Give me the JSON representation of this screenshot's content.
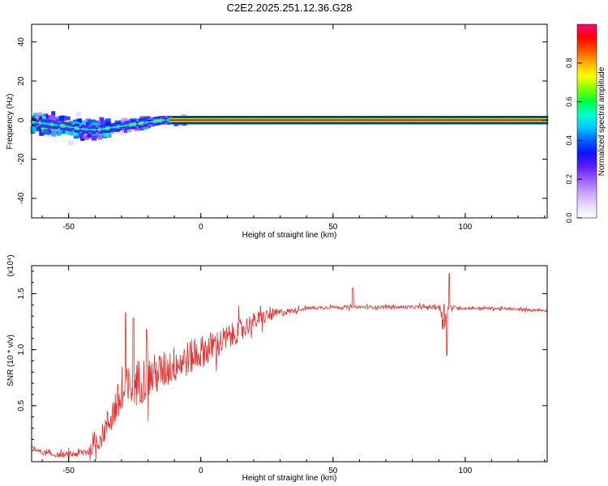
{
  "title": "C2E2.2025.251.12.36.G28",
  "chart_data": [
    {
      "type": "heatmap",
      "name": "spectrogram",
      "xlabel": "Height of straight line (km)",
      "ylabel": "Frequency (Hz)",
      "xlim": [
        -64,
        131
      ],
      "ylim": [
        -50,
        49
      ],
      "xticks": [
        -50,
        0,
        50,
        100
      ],
      "yticks": [
        -40,
        -20,
        0,
        20,
        40
      ],
      "reference_lines_hz": [
        1.5,
        -1.5
      ],
      "colorbar": {
        "label": "Normalized spectral amplitude",
        "range": [
          0,
          1
        ],
        "ticks": [
          0.0,
          0.2,
          0.4,
          0.6,
          0.8
        ],
        "tick_labels": [
          "0.0",
          "0.2",
          "0.4",
          "0.6",
          "0.8"
        ],
        "colors": [
          "#ffffff",
          "#e8d8ff",
          "#c8a0ff",
          "#9a5cff",
          "#5a1cff",
          "#1010ff",
          "#0060ff",
          "#00c8ff",
          "#00ffd0",
          "#00ff40",
          "#80ff00",
          "#ffff00",
          "#ffb000",
          "#ff5000",
          "#ff0000",
          "#ff0080"
        ]
      },
      "frequency_trace": {
        "x": [
          -64,
          -58,
          -52,
          -46,
          -40,
          -35,
          -30,
          -25,
          -20,
          -15,
          -10,
          -5,
          0,
          131
        ],
        "y": [
          -1,
          -2,
          -3,
          -4.5,
          -5,
          -4,
          -3,
          -2,
          -1,
          0,
          0,
          0,
          0,
          0
        ]
      }
    },
    {
      "type": "line",
      "name": "snr",
      "xlabel": "Height of straight line (km)",
      "ylabel": "SNR (10 * v/v)",
      "y_multiplier": "(x10⁴)",
      "xlim": [
        -64,
        131
      ],
      "ylim": [
        0,
        1.75
      ],
      "xticks": [
        -50,
        0,
        50,
        100
      ],
      "yticks": [
        0.5,
        1.0,
        1.5
      ],
      "ytick_labels": [
        "0.5",
        "1.0",
        "1.5"
      ],
      "color": "#e83030",
      "envelope_x": [
        -64,
        -60,
        -55,
        -50,
        -45,
        -42,
        -38,
        -35,
        -32,
        -28,
        -25,
        -20,
        -15,
        -10,
        -5,
        0,
        5,
        10,
        15,
        20,
        25,
        30,
        35,
        40,
        50,
        60,
        70,
        80,
        90,
        92,
        94,
        100,
        110,
        120,
        131
      ],
      "envelope_y": [
        0.13,
        0.08,
        0.06,
        0.06,
        0.08,
        0.1,
        0.2,
        0.35,
        0.5,
        0.62,
        0.7,
        0.75,
        0.8,
        0.87,
        0.92,
        0.98,
        1.03,
        1.1,
        1.18,
        1.25,
        1.3,
        1.33,
        1.35,
        1.37,
        1.38,
        1.38,
        1.38,
        1.38,
        1.38,
        1.3,
        1.38,
        1.37,
        1.37,
        1.36,
        1.35
      ],
      "noise_sigma_y": [
        0.02,
        0.02,
        0.02,
        0.03,
        0.04,
        0.05,
        0.09,
        0.14,
        0.18,
        0.22,
        0.22,
        0.2,
        0.18,
        0.17,
        0.16,
        0.15,
        0.14,
        0.12,
        0.1,
        0.08,
        0.06,
        0.04,
        0.02,
        0.015,
        0.015,
        0.015,
        0.015,
        0.015,
        0.02,
        0.15,
        0.02,
        0.012,
        0.012,
        0.012,
        0.012
      ],
      "spikes": [
        {
          "x": -28.5,
          "y": 1.33
        },
        {
          "x": -25.5,
          "y": 1.28
        },
        {
          "x": -20.5,
          "y": 1.18
        },
        {
          "x": 57.5,
          "y": 1.55
        },
        {
          "x": 93.0,
          "y": 0.95
        },
        {
          "x": 94.0,
          "y": 1.68
        }
      ]
    }
  ]
}
